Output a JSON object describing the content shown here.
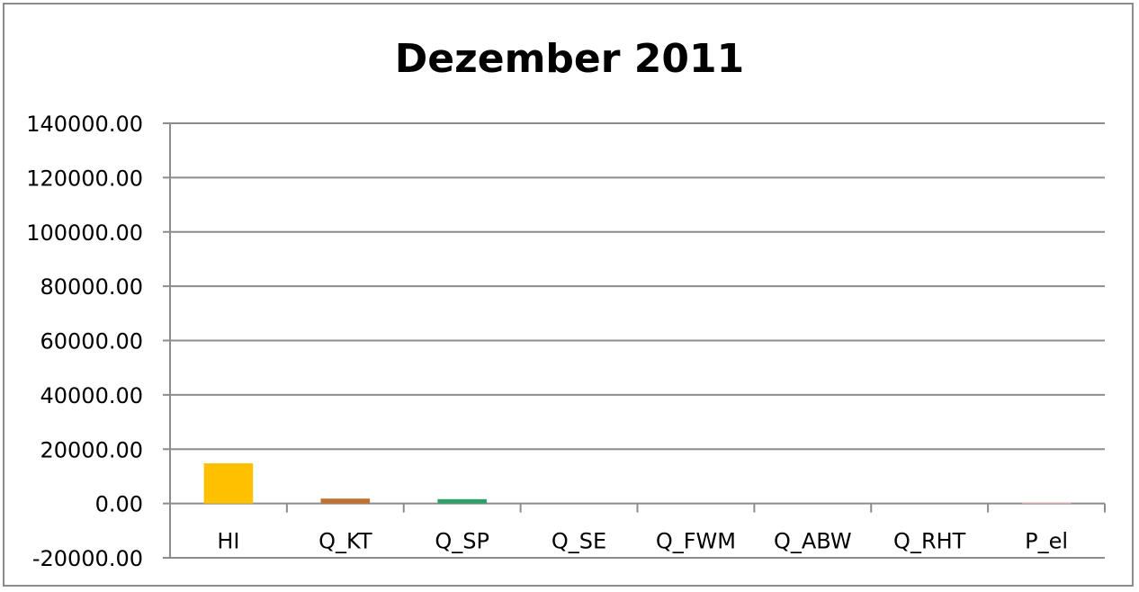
{
  "chart_data": {
    "type": "bar",
    "title": "Dezember 2011",
    "xlabel": "",
    "ylabel": "",
    "ylim": [
      -20000,
      140000
    ],
    "yticks": [
      140000,
      120000,
      100000,
      80000,
      60000,
      40000,
      20000,
      0,
      -20000
    ],
    "ytick_labels": [
      "140000.00",
      "120000.00",
      "100000.00",
      "80000.00",
      "60000.00",
      "40000.00",
      "20000.00",
      "0.00",
      "-20000.00"
    ],
    "grid": true,
    "legend": "none",
    "categories": [
      "HI",
      "Q_KT",
      "Q_SP",
      "Q_SE",
      "Q_FWM",
      "Q_ABW",
      "Q_RHT",
      "P_el"
    ],
    "values": [
      14800,
      1800,
      1600,
      0,
      0,
      0,
      0,
      300
    ],
    "colors": [
      "#ffc000",
      "#c0702f",
      "#2e9e6a",
      "#4472c4",
      "#7f7f7f",
      "#a5a5a5",
      "#5b9bd5",
      "#f4b6c2"
    ]
  }
}
